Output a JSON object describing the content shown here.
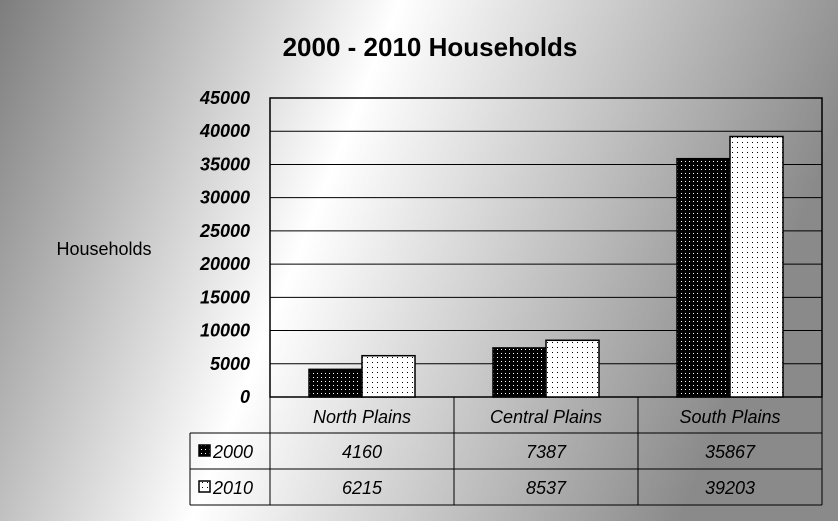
{
  "chart_data": {
    "type": "bar",
    "title": "2000 - 2010 Households",
    "ylabel": "Households",
    "xlabel": "",
    "ylim": [
      0,
      45000
    ],
    "yticks": [
      0,
      5000,
      10000,
      15000,
      20000,
      25000,
      30000,
      35000,
      40000,
      45000
    ],
    "categories": [
      "North Plains",
      "Central Plains",
      "South Plains"
    ],
    "series": [
      {
        "name": "2000",
        "values": [
          4160,
          7387,
          35867
        ],
        "fill": "dark-dotted"
      },
      {
        "name": "2010",
        "values": [
          6215,
          8537,
          39203
        ],
        "fill": "light-dotted"
      }
    ],
    "data_table": true,
    "grid": true,
    "legend": "data-table"
  }
}
